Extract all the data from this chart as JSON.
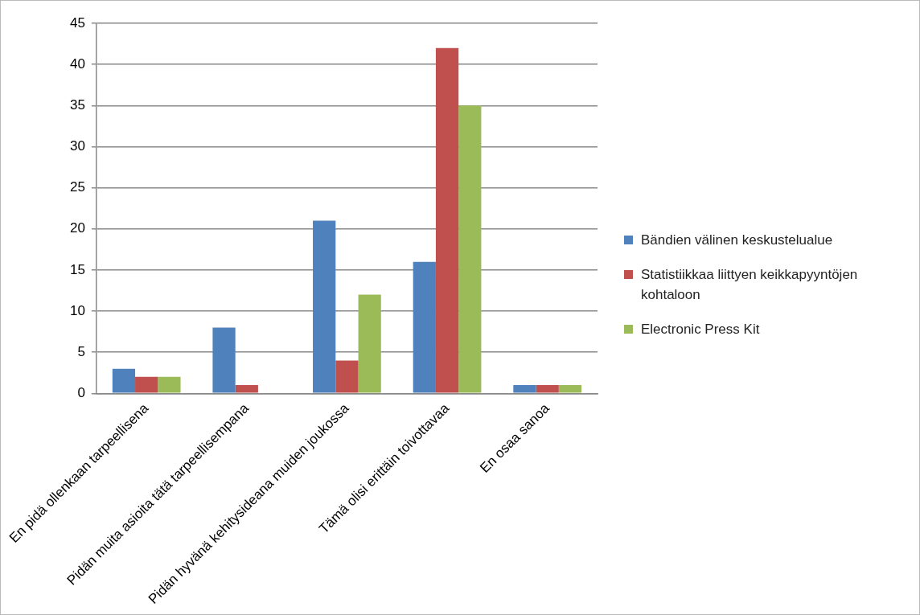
{
  "chart_data": {
    "type": "bar",
    "categories": [
      "En pidä ollenkaan tarpeellisena",
      "Pidän muita asioita tätä tarpeellisempana",
      "Pidän hyvänä kehitysideana muiden joukossa",
      "Tämä olisi erittäin toivottavaa",
      "En osaa sanoa"
    ],
    "series": [
      {
        "name": "Bändien välinen keskustelualue",
        "color": "#4f81bd",
        "values": [
          3,
          8,
          21,
          16,
          1
        ]
      },
      {
        "name": "Statistiikkaa liittyen keikkapyyntöjen kohtaloon",
        "color": "#c0504d",
        "values": [
          2,
          1,
          4,
          42,
          1
        ]
      },
      {
        "name": "Electronic Press Kit",
        "color": "#9bbb59",
        "values": [
          2,
          0,
          12,
          35,
          1
        ]
      }
    ],
    "ylim": [
      0,
      45
    ],
    "yticks": [
      0,
      5,
      10,
      15,
      20,
      25,
      30,
      35,
      40,
      45
    ],
    "grid": "y",
    "legend": "right"
  }
}
